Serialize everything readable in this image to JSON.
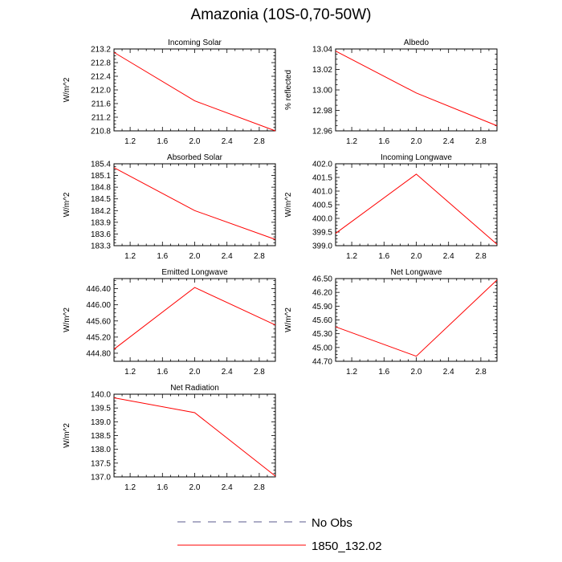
{
  "page_title": "Amazonia (10S-0,70-50W)",
  "legend": {
    "items": [
      {
        "label": "No Obs",
        "color": "#5a5a8c",
        "dash": "dashed"
      },
      {
        "label": "1850_132.02",
        "color": "#ff0000",
        "dash": "solid"
      }
    ]
  },
  "chart_data": [
    {
      "type": "line",
      "title": "Incoming Solar",
      "ylabel": "W/m^2",
      "xlabel": "",
      "xlim": [
        1,
        3
      ],
      "ylim": [
        210.8,
        213.2
      ],
      "xticks": [
        1.2,
        1.6,
        2.0,
        2.4,
        2.8
      ],
      "xtick_labels": [
        "1.2",
        "1.6",
        "2.0",
        "2.4",
        "2.8"
      ],
      "yticks": [
        210.8,
        211.2,
        211.6,
        212.0,
        212.4,
        212.8,
        213.2
      ],
      "ytick_labels": [
        "210.8",
        "211.2",
        "211.6",
        "212.0",
        "212.4",
        "212.8",
        "213.2"
      ],
      "series": [
        {
          "name": "1850_132.02",
          "color": "#ff0000",
          "x": [
            1,
            2,
            3
          ],
          "values": [
            213.1,
            211.68,
            210.8
          ]
        }
      ]
    },
    {
      "type": "line",
      "title": "Albedo",
      "ylabel": "% reflected",
      "xlabel": "",
      "xlim": [
        1,
        3
      ],
      "ylim": [
        12.96,
        13.04
      ],
      "xticks": [
        1.2,
        1.6,
        2.0,
        2.4,
        2.8
      ],
      "xtick_labels": [
        "1.2",
        "1.6",
        "2.0",
        "2.4",
        "2.8"
      ],
      "yticks": [
        12.96,
        12.98,
        13.0,
        13.02,
        13.04
      ],
      "ytick_labels": [
        "12.96",
        "12.98",
        "13.00",
        "13.02",
        "13.04"
      ],
      "series": [
        {
          "name": "1850_132.02",
          "color": "#ff0000",
          "x": [
            1,
            2,
            3
          ],
          "values": [
            13.038,
            12.997,
            12.965
          ]
        }
      ]
    },
    {
      "type": "line",
      "title": "Absorbed Solar",
      "ylabel": "W/m^2",
      "xlabel": "",
      "xlim": [
        1,
        3
      ],
      "ylim": [
        183.3,
        185.4
      ],
      "xticks": [
        1.2,
        1.6,
        2.0,
        2.4,
        2.8
      ],
      "xtick_labels": [
        "1.2",
        "1.6",
        "2.0",
        "2.4",
        "2.8"
      ],
      "yticks": [
        183.3,
        183.6,
        183.9,
        184.2,
        184.5,
        184.8,
        185.1,
        185.4
      ],
      "ytick_labels": [
        "183.3",
        "183.6",
        "183.9",
        "184.2",
        "184.5",
        "184.8",
        "185.1",
        "185.4"
      ],
      "series": [
        {
          "name": "1850_132.02",
          "color": "#ff0000",
          "x": [
            1,
            2,
            3
          ],
          "values": [
            185.3,
            184.2,
            183.46
          ]
        }
      ]
    },
    {
      "type": "line",
      "title": "Incoming Longwave",
      "ylabel": "W/m^2",
      "xlabel": "",
      "xlim": [
        1,
        3
      ],
      "ylim": [
        399.0,
        402.0
      ],
      "xticks": [
        1.2,
        1.6,
        2.0,
        2.4,
        2.8
      ],
      "xtick_labels": [
        "1.2",
        "1.6",
        "2.0",
        "2.4",
        "2.8"
      ],
      "yticks": [
        399.0,
        399.5,
        400.0,
        400.5,
        401.0,
        401.5,
        402.0
      ],
      "ytick_labels": [
        "399.0",
        "399.5",
        "400.0",
        "400.5",
        "401.0",
        "401.5",
        "402.0"
      ],
      "series": [
        {
          "name": "1850_132.02",
          "color": "#ff0000",
          "x": [
            1,
            2,
            3
          ],
          "values": [
            399.45,
            401.62,
            399.05
          ]
        }
      ]
    },
    {
      "type": "line",
      "title": "Emitted Longwave",
      "ylabel": "W/m^2",
      "xlabel": "",
      "xlim": [
        1,
        3
      ],
      "ylim": [
        444.6,
        446.65
      ],
      "xticks": [
        1.2,
        1.6,
        2.0,
        2.4,
        2.8
      ],
      "xtick_labels": [
        "1.2",
        "1.6",
        "2.0",
        "2.4",
        "2.8"
      ],
      "yticks": [
        444.8,
        445.2,
        445.6,
        446.0,
        446.4
      ],
      "ytick_labels": [
        "444.80",
        "445.20",
        "445.60",
        "446.00",
        "446.40"
      ],
      "series": [
        {
          "name": "1850_132.02",
          "color": "#ff0000",
          "x": [
            1,
            2,
            3
          ],
          "values": [
            444.9,
            446.43,
            445.5
          ]
        }
      ]
    },
    {
      "type": "line",
      "title": "Net Longwave",
      "ylabel": "W/m^2",
      "xlabel": "",
      "xlim": [
        1,
        3
      ],
      "ylim": [
        44.7,
        46.5
      ],
      "xticks": [
        1.2,
        1.6,
        2.0,
        2.4,
        2.8
      ],
      "xtick_labels": [
        "1.2",
        "1.6",
        "2.0",
        "2.4",
        "2.8"
      ],
      "yticks": [
        44.7,
        45.0,
        45.3,
        45.6,
        45.9,
        46.2,
        46.5
      ],
      "ytick_labels": [
        "44.70",
        "45.00",
        "45.30",
        "45.60",
        "45.90",
        "46.20",
        "46.50"
      ],
      "series": [
        {
          "name": "1850_132.02",
          "color": "#ff0000",
          "x": [
            1,
            2,
            3
          ],
          "values": [
            45.45,
            44.81,
            46.47
          ]
        }
      ]
    },
    {
      "type": "line",
      "title": "Net Radiation",
      "ylabel": "W/m^2",
      "xlabel": "",
      "xlim": [
        1,
        3
      ],
      "ylim": [
        137.0,
        140.0
      ],
      "xticks": [
        1.2,
        1.6,
        2.0,
        2.4,
        2.8
      ],
      "xtick_labels": [
        "1.2",
        "1.6",
        "2.0",
        "2.4",
        "2.8"
      ],
      "yticks": [
        137.0,
        137.5,
        138.0,
        138.5,
        139.0,
        139.5,
        140.0
      ],
      "ytick_labels": [
        "137.0",
        "137.5",
        "138.0",
        "138.5",
        "139.0",
        "139.5",
        "140.0"
      ],
      "series": [
        {
          "name": "1850_132.02",
          "color": "#ff0000",
          "x": [
            1,
            2,
            3
          ],
          "values": [
            139.87,
            139.33,
            137.03
          ]
        }
      ]
    }
  ]
}
